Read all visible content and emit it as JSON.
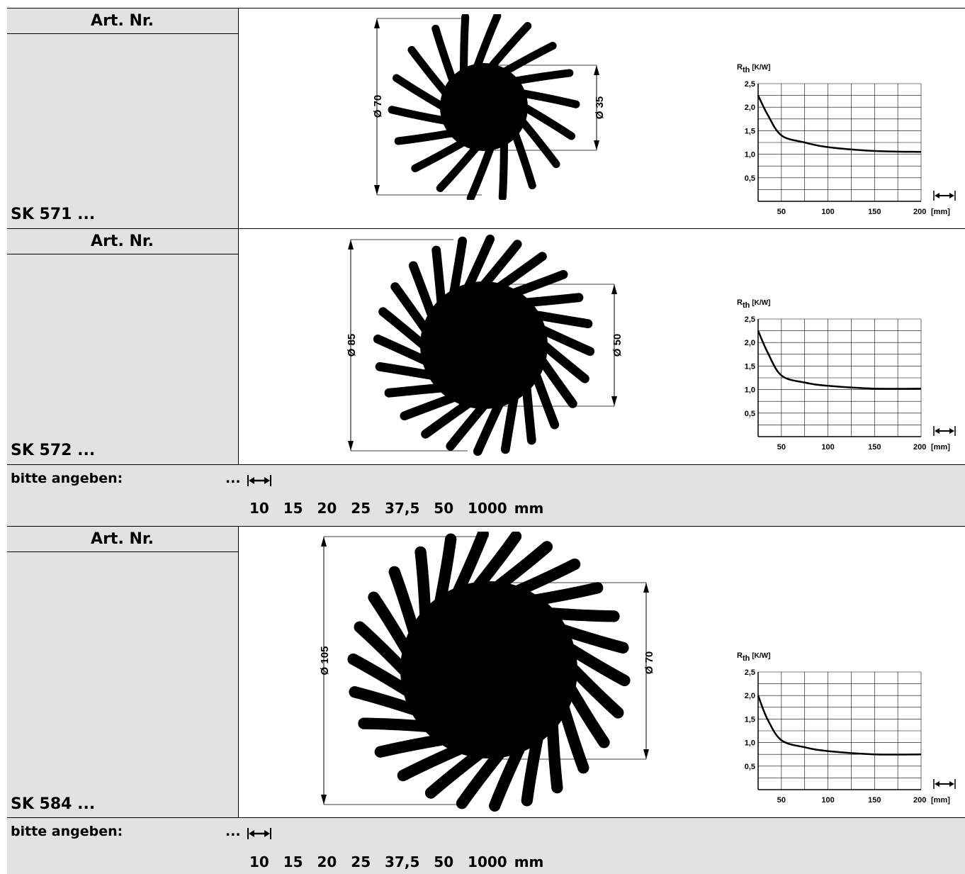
{
  "sections": [
    {
      "header": "Art. Nr.",
      "sku": "SK 571 ...",
      "outer_dim": "Ø 70",
      "inner_dim": "Ø 35",
      "fins": 18,
      "chart_data": {
        "type": "line",
        "ylabel_main": "R",
        "ylabel_sub": "th",
        "ylabel_unit": "[K/W]",
        "xlabel": "[mm]",
        "x_ticks": [
          "50",
          "100",
          "150",
          "200"
        ],
        "y_ticks": [
          "0,5",
          "1,0",
          "1,5",
          "2,0",
          "2,5"
        ],
        "xlim": [
          0,
          200
        ],
        "ylim": [
          0,
          2.5
        ],
        "series": [
          {
            "x": [
              25,
              35,
              50,
              75,
              100,
              150,
              200
            ],
            "y": [
              2.25,
              1.85,
              1.4,
              1.25,
              1.15,
              1.07,
              1.05
            ]
          }
        ]
      }
    },
    {
      "header": "Art. Nr.",
      "sku": "SK 572 ...",
      "outer_dim": "Ø 85",
      "inner_dim": "Ø 50",
      "fins": 24,
      "chart_data": {
        "type": "line",
        "ylabel_main": "R",
        "ylabel_sub": "th",
        "ylabel_unit": "[K/W]",
        "xlabel": "[mm]",
        "x_ticks": [
          "50",
          "100",
          "150",
          "200"
        ],
        "y_ticks": [
          "0,5",
          "1,0",
          "1,5",
          "2,0",
          "2,5"
        ],
        "xlim": [
          0,
          200
        ],
        "ylim": [
          0,
          2.5
        ],
        "series": [
          {
            "x": [
              25,
              35,
              50,
              75,
              100,
              150,
              200
            ],
            "y": [
              2.25,
              1.8,
              1.3,
              1.15,
              1.08,
              1.02,
              1.02
            ]
          }
        ]
      }
    },
    {
      "header": "Art. Nr.",
      "sku": "SK 584 ...",
      "outer_dim": "Ø 105",
      "inner_dim": "Ø 70",
      "fins": 26,
      "chart_data": {
        "type": "line",
        "ylabel_main": "R",
        "ylabel_sub": "th",
        "ylabel_unit": "[K/W]",
        "xlabel": "[mm]",
        "x_ticks": [
          "50",
          "100",
          "150",
          "200"
        ],
        "y_ticks": [
          "0,5",
          "1,0",
          "1,5",
          "2,0",
          "2,5"
        ],
        "xlim": [
          0,
          200
        ],
        "ylim": [
          0,
          2.5
        ],
        "series": [
          {
            "x": [
              25,
              35,
              50,
              75,
              100,
              150,
              200
            ],
            "y": [
              2.0,
              1.5,
              1.05,
              0.9,
              0.82,
              0.75,
              0.75
            ]
          }
        ]
      }
    }
  ],
  "length_rows": [
    {
      "label": "bitte angeben:",
      "dots": "...",
      "sizes": "10  15  20  25  37,5  50  1000 mm"
    },
    {
      "label": "bitte angeben:",
      "dots": "...",
      "sizes": "10  15  20  25  37,5  50  1000 mm"
    }
  ]
}
